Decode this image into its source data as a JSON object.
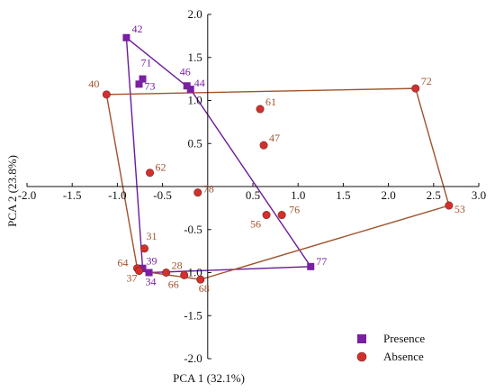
{
  "chart_data": {
    "type": "scatter",
    "xlabel": "PCA 1 (32.1%)",
    "ylabel": "PCA 2 (23.8%)",
    "xlim": [
      -2.0,
      3.0
    ],
    "ylim": [
      -2.0,
      2.0
    ],
    "xticks": [
      "-2.0",
      "-1.5",
      "-1.0",
      "-0.5",
      "0.5",
      "1.0",
      "1.5",
      "2.0",
      "2.5",
      "3.0"
    ],
    "xtick_values": [
      -2.0,
      -1.5,
      -1.0,
      -0.5,
      0.5,
      1.0,
      1.5,
      2.0,
      2.5,
      3.0
    ],
    "yticks": [
      "2.0",
      "1.5",
      "1.0",
      "0.5",
      "-0.5",
      "-1.0",
      "-1.5",
      "-2.0"
    ],
    "ytick_values": [
      2.0,
      1.5,
      1.0,
      0.5,
      -0.5,
      -1.0,
      -1.5,
      -2.0
    ],
    "legend_position": "bottom-right",
    "series": [
      {
        "name": "Presence",
        "marker": "square",
        "color": "#7a1fa2",
        "hull_color": "#6a1b9a",
        "label_color": "#7a1fa2",
        "points": [
          {
            "label": "42",
            "x": -0.9,
            "y": 1.73
          },
          {
            "label": "71",
            "x": -0.72,
            "y": 1.25
          },
          {
            "label": "73",
            "x": -0.76,
            "y": 1.19
          },
          {
            "label": "46",
            "x": -0.23,
            "y": 1.17
          },
          {
            "label": "44",
            "x": -0.19,
            "y": 1.13
          },
          {
            "label": "39",
            "x": -0.72,
            "y": -0.95
          },
          {
            "label": "34",
            "x": -0.65,
            "y": -1.0
          },
          {
            "label": "77",
            "x": 1.14,
            "y": -0.93
          }
        ],
        "hull": [
          "42",
          "44",
          "77",
          "34",
          "39"
        ]
      },
      {
        "name": "Absence",
        "marker": "circle",
        "color": "#d32f2f",
        "hull_color": "#a0522d",
        "label_color": "#a0522d",
        "points": [
          {
            "label": "40",
            "x": -1.12,
            "y": 1.07
          },
          {
            "label": "72",
            "x": 2.3,
            "y": 1.14
          },
          {
            "label": "61",
            "x": 0.58,
            "y": 0.9
          },
          {
            "label": "47",
            "x": 0.62,
            "y": 0.48
          },
          {
            "label": "62",
            "x": -0.64,
            "y": 0.16
          },
          {
            "label": "78",
            "x": -0.11,
            "y": -0.07
          },
          {
            "label": "56",
            "x": 0.65,
            "y": -0.33
          },
          {
            "label": "76",
            "x": 0.82,
            "y": -0.33
          },
          {
            "label": "53",
            "x": 2.67,
            "y": -0.22
          },
          {
            "label": "31",
            "x": -0.7,
            "y": -0.72
          },
          {
            "label": "64",
            "x": -0.78,
            "y": -0.95
          },
          {
            "label": "37",
            "x": -0.76,
            "y": -0.98
          },
          {
            "label": "28",
            "x": -0.46,
            "y": -1.0
          },
          {
            "label": "66",
            "x": -0.26,
            "y": -1.03
          },
          {
            "label": "68",
            "x": -0.08,
            "y": -1.08
          }
        ],
        "hull": [
          "40",
          "72",
          "53",
          "68",
          "37",
          "64"
        ]
      }
    ]
  }
}
